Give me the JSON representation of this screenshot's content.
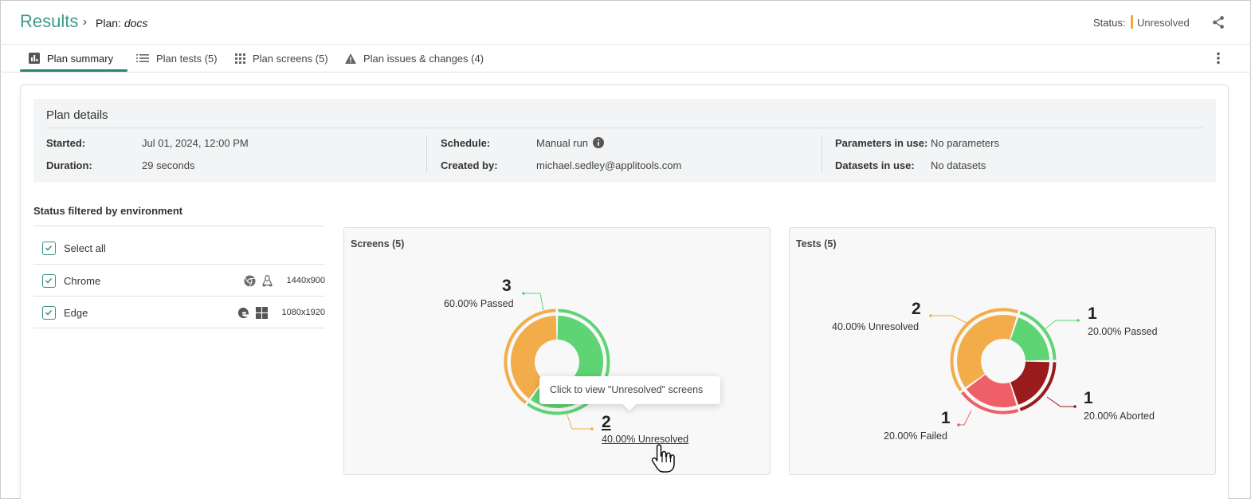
{
  "header": {
    "title": "Results",
    "plan_prefix": "Plan:",
    "plan_name": "docs",
    "status_label": "Status:",
    "status_value": "Unresolved",
    "status_color": "#f0a93a"
  },
  "tabs": [
    {
      "label": "Plan summary",
      "icon": "bar-chart-icon",
      "active": true
    },
    {
      "label": "Plan tests (5)",
      "icon": "list-icon",
      "active": false
    },
    {
      "label": "Plan screens (5)",
      "icon": "grid-icon",
      "active": false
    },
    {
      "label": "Plan issues & changes (4)",
      "icon": "warning-icon",
      "active": false
    }
  ],
  "details": {
    "title": "Plan details",
    "started_label": "Started:",
    "started_value": "Jul 01, 2024, 12:00 PM",
    "duration_label": "Duration:",
    "duration_value": "29 seconds",
    "schedule_label": "Schedule:",
    "schedule_value": "Manual run",
    "created_label": "Created by:",
    "created_value": "michael.sedley@applitools.com",
    "params_label": "Parameters in use:",
    "params_value": "No parameters",
    "datasets_label": "Datasets in use:",
    "datasets_value": "No datasets"
  },
  "env_filter": {
    "title": "Status filtered by environment",
    "select_all": "Select all",
    "rows": [
      {
        "browser": "Chrome",
        "browser_icon": "chrome-icon",
        "os_icon": "linux-icon",
        "resolution": "1440x900"
      },
      {
        "browser": "Edge",
        "browser_icon": "edge-icon",
        "os_icon": "windows-icon",
        "resolution": "1080x1920"
      }
    ]
  },
  "screens_panel": {
    "title": "Screens (5)",
    "passed_count": "3",
    "passed_label": "60.00% Passed",
    "unresolved_count": "2",
    "unresolved_label": "40.00% Unresolved",
    "tooltip": "Click to view \"Unresolved\" screens"
  },
  "tests_panel": {
    "title": "Tests (5)",
    "unresolved_count": "2",
    "unresolved_label": "40.00% Unresolved",
    "passed_count": "1",
    "passed_label": "20.00% Passed",
    "aborted_count": "1",
    "aborted_label": "20.00% Aborted",
    "failed_count": "1",
    "failed_label": "20.00% Failed"
  },
  "chart_data": [
    {
      "type": "pie",
      "title": "Screens (5)",
      "categories": [
        "Passed",
        "Unresolved"
      ],
      "values": [
        3,
        2
      ],
      "percent": [
        60.0,
        40.0
      ],
      "colors": [
        "#5fd474",
        "#f2ad4a"
      ]
    },
    {
      "type": "pie",
      "title": "Tests (5)",
      "categories": [
        "Unresolved",
        "Passed",
        "Aborted",
        "Failed"
      ],
      "values": [
        2,
        1,
        1,
        1
      ],
      "percent": [
        40.0,
        20.0,
        20.0,
        20.0
      ],
      "colors": [
        "#f2ad4a",
        "#5fd474",
        "#9a1b1b",
        "#ee5f68"
      ]
    }
  ]
}
